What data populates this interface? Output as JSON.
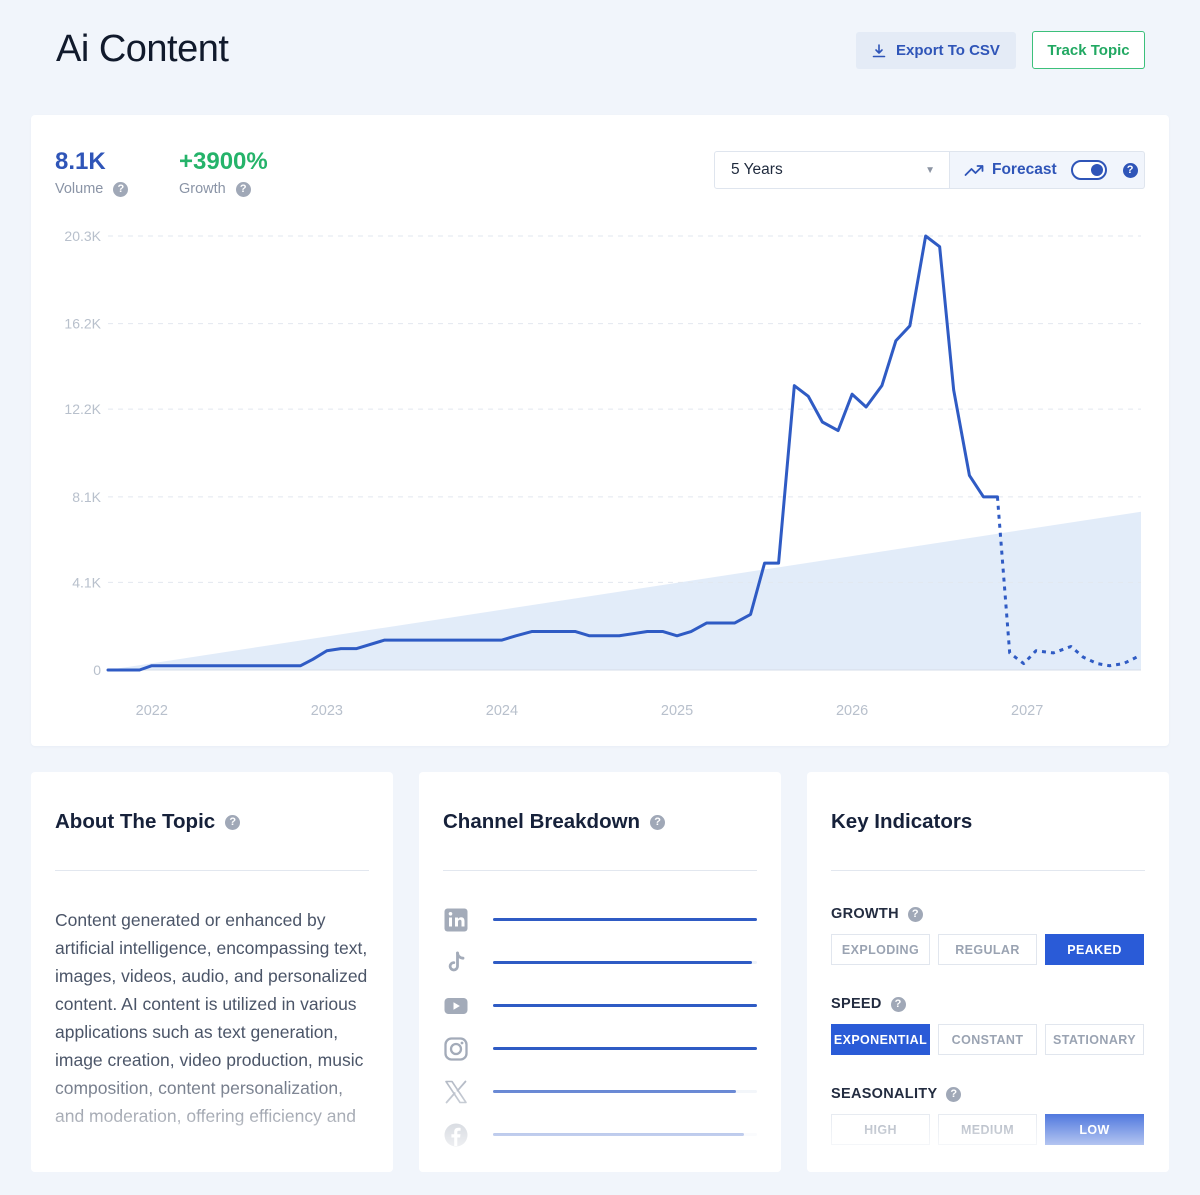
{
  "header": {
    "title": "Ai Content",
    "export_label": "Export To CSV",
    "track_label": "Track Topic"
  },
  "metrics": {
    "volume": {
      "value": "8.1K",
      "label": "Volume",
      "color": "#2f55b8"
    },
    "growth": {
      "value": "+3900%",
      "label": "Growth",
      "color": "#25b36a"
    }
  },
  "controls": {
    "range": "5 Years",
    "forecast_label": "Forecast",
    "forecast_enabled": true
  },
  "chart_data": {
    "type": "line",
    "y_ticks": [
      "20.3K",
      "16.2K",
      "12.2K",
      "8.1K",
      "4.1K",
      "0"
    ],
    "y_tick_values": [
      20300,
      16200,
      12200,
      8100,
      4100,
      0
    ],
    "ylim": [
      0,
      20300
    ],
    "x_ticks": [
      "2022",
      "2023",
      "2024",
      "2025",
      "2026",
      "2027"
    ],
    "x_tick_values": [
      2022,
      2023,
      2024,
      2025,
      2026,
      2027
    ],
    "xlim": [
      2021.75,
      2027.65
    ],
    "grid": true,
    "series": [
      {
        "role": "actual",
        "color": "#2f5bc4",
        "x": [
          2021.75,
          2021.93,
          2022.0,
          2022.5,
          2022.85,
          2022.92,
          2023.0,
          2023.08,
          2023.17,
          2023.33,
          2023.5,
          2023.67,
          2023.83,
          2024.0,
          2024.08,
          2024.17,
          2024.33,
          2024.42,
          2024.5,
          2024.67,
          2024.83,
          2024.92,
          2025.0,
          2025.08,
          2025.17,
          2025.25,
          2025.33,
          2025.42,
          2025.5,
          2025.58,
          2025.67,
          2025.75,
          2025.83,
          2025.92,
          2026.0,
          2026.08,
          2026.17,
          2026.25,
          2026.33,
          2026.42,
          2026.5,
          2026.58,
          2026.67,
          2026.75,
          2026.83
        ],
        "y": [
          0,
          0,
          200,
          200,
          200,
          500,
          900,
          1000,
          1000,
          1400,
          1400,
          1400,
          1400,
          1400,
          1600,
          1800,
          1800,
          1800,
          1600,
          1600,
          1800,
          1800,
          1600,
          1800,
          2200,
          2200,
          2200,
          2600,
          5000,
          5000,
          13300,
          12800,
          11600,
          11200,
          12900,
          12300,
          13300,
          15400,
          16100,
          20300,
          19800,
          13100,
          9100,
          8100,
          8100
        ]
      },
      {
        "role": "forecast",
        "color": "#2f5bc4",
        "dashed": true,
        "x": [
          2026.83,
          2026.9,
          2026.98,
          2027.05,
          2027.15,
          2027.25,
          2027.32,
          2027.4,
          2027.47,
          2027.55,
          2027.65
        ],
        "y": [
          8100,
          800,
          300,
          900,
          800,
          1100,
          600,
          300,
          200,
          300,
          700
        ]
      },
      {
        "role": "trend",
        "color": "#dbe7f8",
        "x": [
          2021.75,
          2027.65
        ],
        "y": [
          0,
          7400
        ]
      }
    ]
  },
  "about": {
    "title": "About The Topic",
    "text": "Content generated or enhanced by artificial intelligence, encompassing text, images, videos, audio, and personalized content. AI content is utilized in various applications such as text generation, image creation, video production, music composition, content personalization, and moderation, offering efficiency and"
  },
  "channels": {
    "title": "Channel Breakdown",
    "items": [
      {
        "icon": "linkedin-icon",
        "value": 1.0
      },
      {
        "icon": "tiktok-icon",
        "value": 0.98
      },
      {
        "icon": "youtube-icon",
        "value": 1.0
      },
      {
        "icon": "instagram-icon",
        "value": 1.0
      },
      {
        "icon": "x-icon",
        "value": 0.92
      },
      {
        "icon": "facebook-icon",
        "value": 0.95
      }
    ]
  },
  "indicators": {
    "title": "Key Indicators",
    "groups": [
      {
        "label": "GROWTH",
        "options": [
          "EXPLODING",
          "REGULAR",
          "PEAKED"
        ],
        "active": 2
      },
      {
        "label": "SPEED",
        "options": [
          "EXPONENTIAL",
          "CONSTANT",
          "STATIONARY"
        ],
        "active": 0
      },
      {
        "label": "SEASONALITY",
        "options": [
          "HIGH",
          "MEDIUM",
          "LOW"
        ],
        "active": 2
      }
    ]
  }
}
